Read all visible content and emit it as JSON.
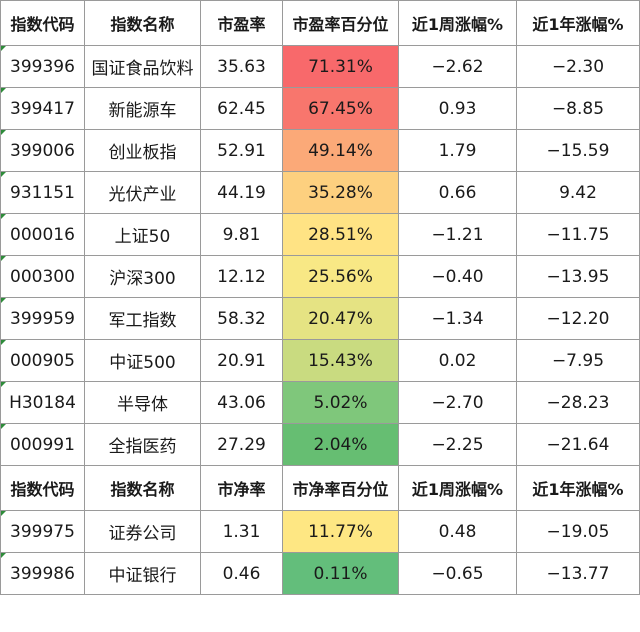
{
  "header1": [
    "指数代码",
    "指数名称",
    "市盈率",
    "市盈率百分位",
    "近1周涨幅%",
    "近1年涨幅%"
  ],
  "rows1": [
    {
      "code": "399396",
      "name": "国证食品饮料",
      "ratio": "35.63",
      "pct": "71.31%",
      "week": "−2.62",
      "year": "−2.30",
      "color": "#f8696b"
    },
    {
      "code": "399417",
      "name": "新能源车",
      "ratio": "62.45",
      "pct": "67.45%",
      "week": "0.93",
      "year": "−8.85",
      "color": "#f8766d"
    },
    {
      "code": "399006",
      "name": "创业板指",
      "ratio": "52.91",
      "pct": "49.14%",
      "week": "1.79",
      "year": "−15.59",
      "color": "#fba978"
    },
    {
      "code": "931151",
      "name": "光伏产业",
      "ratio": "44.19",
      "pct": "35.28%",
      "week": "0.66",
      "year": "9.42",
      "color": "#fdd07f"
    },
    {
      "code": "000016",
      "name": "上证50",
      "ratio": "9.81",
      "pct": "28.51%",
      "week": "−1.21",
      "year": "−11.75",
      "color": "#ffe384"
    },
    {
      "code": "000300",
      "name": "沪深300",
      "ratio": "12.12",
      "pct": "25.56%",
      "week": "−0.40",
      "year": "−13.95",
      "color": "#f8e885"
    },
    {
      "code": "399959",
      "name": "军工指数",
      "ratio": "58.32",
      "pct": "20.47%",
      "week": "−1.34",
      "year": "−12.20",
      "color": "#e5e383"
    },
    {
      "code": "000905",
      "name": "中证500",
      "ratio": "20.91",
      "pct": "15.43%",
      "week": "0.02",
      "year": "−7.95",
      "color": "#c9db80"
    },
    {
      "code": "H30184",
      "name": "半导体",
      "ratio": "43.06",
      "pct": "5.02%",
      "week": "−2.70",
      "year": "−28.23",
      "color": "#7fc77b"
    },
    {
      "code": "000991",
      "name": "全指医药",
      "ratio": "27.29",
      "pct": "2.04%",
      "week": "−2.25",
      "year": "−21.64",
      "color": "#66be72"
    }
  ],
  "header2": [
    "指数代码",
    "指数名称",
    "市净率",
    "市净率百分位",
    "近1周涨幅%",
    "近1年涨幅%"
  ],
  "rows2": [
    {
      "code": "399975",
      "name": "证券公司",
      "ratio": "1.31",
      "pct": "11.77%",
      "week": "0.48",
      "year": "−19.05",
      "color": "#fee783"
    },
    {
      "code": "399986",
      "name": "中证银行",
      "ratio": "0.46",
      "pct": "0.11%",
      "week": "−0.65",
      "year": "−13.77",
      "color": "#63be7b"
    }
  ]
}
